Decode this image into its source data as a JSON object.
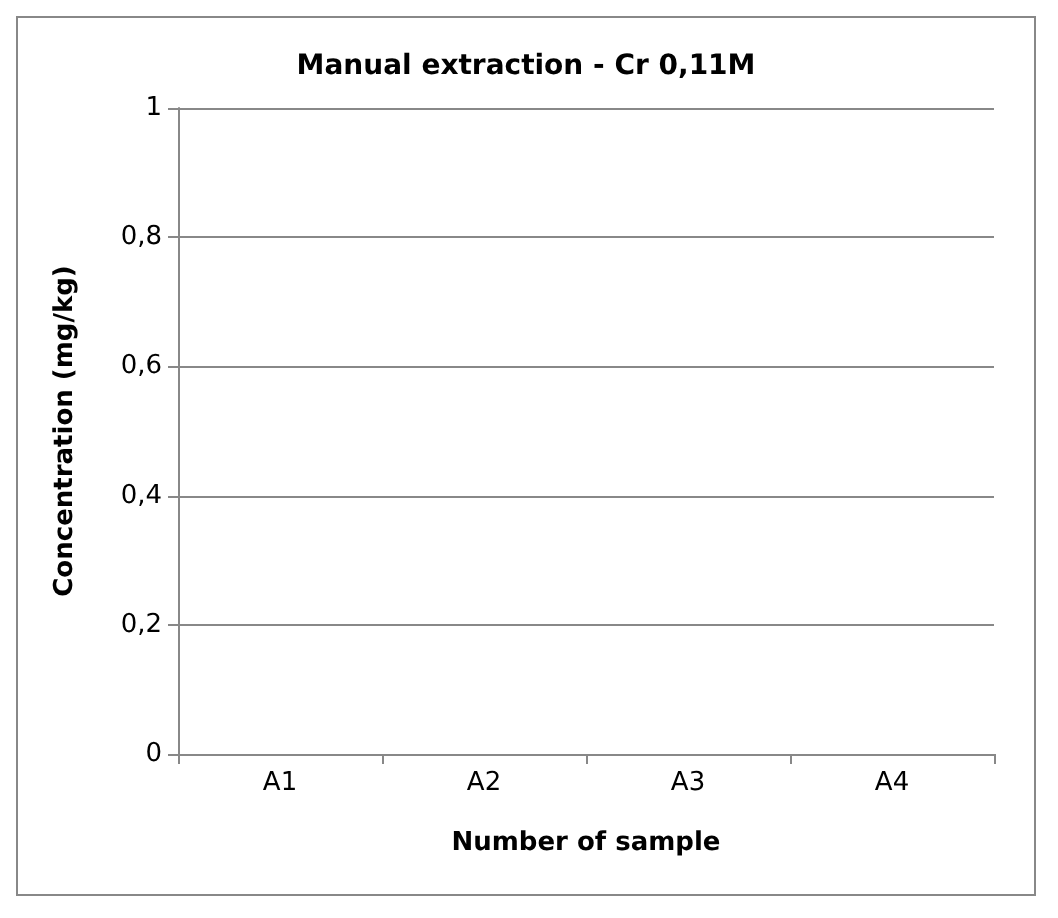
{
  "chart_data": {
    "type": "bar",
    "title": "Manual extraction - Cr 0,11M",
    "xlabel": "Number of sample",
    "ylabel": "Concentration (mg/kg)",
    "categories": [
      "A1",
      "A2",
      "A3",
      "A4"
    ],
    "values": [
      0,
      0,
      0,
      0
    ],
    "ylim": [
      0,
      1
    ],
    "yticks": [
      0,
      {
        "value": 0.2,
        "label": "0,2"
      },
      {
        "value": 0.4,
        "label": "0,4"
      },
      {
        "value": 0.6,
        "label": "0,6"
      },
      {
        "value": 0.8,
        "label": "0,8"
      },
      1
    ],
    "grid": "y"
  }
}
